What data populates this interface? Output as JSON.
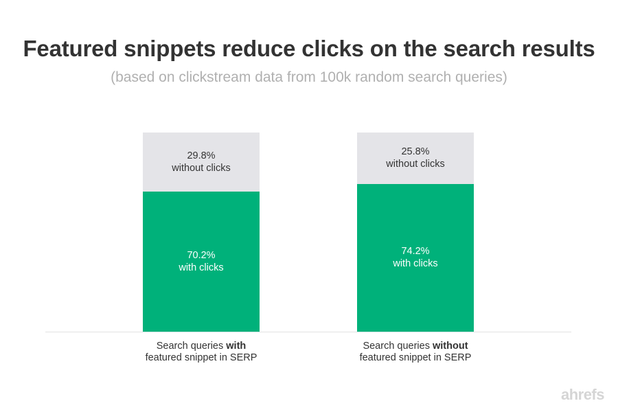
{
  "chart_data": {
    "type": "bar",
    "stacked": true,
    "title": "Featured snippets reduce clicks on the search results",
    "subtitle": "(based on clickstream data from 100k random search queries)",
    "categories": [
      {
        "prefix": "Search queries ",
        "bold": "with",
        "line2": "featured snippet in SERP"
      },
      {
        "prefix": "Search queries ",
        "bold": "without",
        "line2": "featured snippet in SERP"
      }
    ],
    "series": [
      {
        "key": "with_clicks",
        "values": [
          70.2,
          74.2
        ],
        "color": "#00b17a",
        "text_color": "#ffffff",
        "labels": [
          [
            "70.2%",
            "with clicks"
          ],
          [
            "74.2%",
            "with clicks"
          ]
        ]
      },
      {
        "key": "without_clicks",
        "values": [
          29.8,
          25.8
        ],
        "color": "#e4e4e8",
        "text_color": "#333333",
        "labels": [
          [
            "29.8%",
            "without clicks"
          ],
          [
            "25.8%",
            "without clicks"
          ]
        ]
      }
    ],
    "ylim": [
      0,
      100
    ],
    "grid": false,
    "legend": "none"
  },
  "brand": "ahrefs"
}
